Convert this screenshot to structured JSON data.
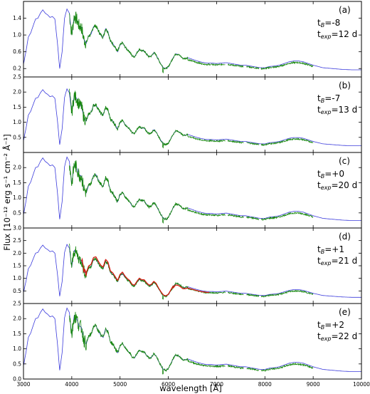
{
  "chart_data": {
    "type": "line",
    "xlabel": "wavelength [Å]",
    "ylabel": "Flux [10⁻¹² erg s⁻¹ cm⁻² Å⁻¹]",
    "xlim": [
      3000,
      10000
    ],
    "x_ticks": [
      "3000",
      "4000",
      "5000",
      "6000",
      "7000",
      "8000",
      "9000",
      "10000"
    ],
    "colors": {
      "model": "#3b3bdc",
      "observed": "#17870f",
      "comparison": "#d41a10"
    },
    "series_roles": [
      "model",
      "observed",
      "comparison"
    ],
    "panels": [
      {
        "label": "(a)",
        "line1": "t",
        "sub1": "B",
        "val1": "=-8",
        "line2": "t",
        "sub2": "exp",
        "val2": "=12 d",
        "ylim": [
          0.0,
          1.8
        ],
        "y_ticks": [
          0.2,
          0.6,
          1.0,
          1.4
        ],
        "model_scale": 1.0,
        "obs_range": [
          3950,
          9000
        ],
        "red": false
      },
      {
        "label": "(b)",
        "line1": "t",
        "sub1": "B",
        "val1": "=-7",
        "line2": "t",
        "sub2": "exp",
        "val2": "=13 d",
        "ylim": [
          0.0,
          2.5
        ],
        "y_ticks": [
          0.5,
          1.0,
          1.5,
          2.0,
          2.5
        ],
        "model_scale": 1.3,
        "obs_range": [
          3950,
          9000
        ],
        "red": false
      },
      {
        "label": "(c)",
        "line1": "t",
        "sub1": "B",
        "val1": "=+0",
        "line2": "t",
        "sub2": "exp",
        "val2": "=20 d",
        "ylim": [
          0.0,
          2.5
        ],
        "y_ticks": [
          0.5,
          1.0,
          1.5,
          2.0
        ],
        "model_scale": 1.45,
        "obs_range": [
          3950,
          9000
        ],
        "red": false
      },
      {
        "label": "(d)",
        "line1": "t",
        "sub1": "B",
        "val1": "=+1",
        "line2": "t",
        "sub2": "exp",
        "val2": "=21 d",
        "ylim": [
          0.0,
          3.0
        ],
        "y_ticks": [
          0.5,
          1.0,
          1.5,
          2.0,
          2.5,
          3.0
        ],
        "model_scale": 1.45,
        "obs_range": [
          3950,
          9000
        ],
        "red": true
      },
      {
        "label": "(e)",
        "line1": "t",
        "sub1": "B",
        "val1": "=+2",
        "line2": "t",
        "sub2": "exp",
        "val2": "=22 d",
        "ylim": [
          0.0,
          2.5
        ],
        "y_ticks": [
          0.0,
          0.5,
          1.0,
          1.5,
          2.0,
          2.5
        ],
        "model_scale": 1.45,
        "obs_range": [
          3950,
          9000
        ],
        "red": false
      }
    ],
    "model_template": {
      "x": [
        3000,
        3050,
        3100,
        3150,
        3200,
        3250,
        3300,
        3350,
        3400,
        3450,
        3500,
        3550,
        3600,
        3650,
        3700,
        3750,
        3800,
        3850,
        3900,
        3950,
        4000,
        4050,
        4100,
        4150,
        4200,
        4250,
        4300,
        4350,
        4400,
        4450,
        4500,
        4550,
        4600,
        4650,
        4700,
        4750,
        4800,
        4850,
        4900,
        4950,
        5000,
        5050,
        5100,
        5150,
        5200,
        5250,
        5300,
        5350,
        5400,
        5450,
        5500,
        5550,
        5600,
        5650,
        5700,
        5750,
        5800,
        5850,
        5900,
        5950,
        6000,
        6050,
        6100,
        6150,
        6200,
        6250,
        6300,
        6350,
        6400,
        6500,
        6600,
        6700,
        6800,
        6900,
        7000,
        7100,
        7200,
        7300,
        7400,
        7500,
        7600,
        7700,
        7800,
        7900,
        8000,
        8100,
        8200,
        8300,
        8400,
        8500,
        8600,
        8700,
        8800,
        8900,
        9000,
        9200,
        9400,
        9600,
        9800,
        10000
      ],
      "y": [
        0.3,
        0.6,
        0.95,
        1.05,
        1.22,
        1.38,
        1.4,
        1.52,
        1.6,
        1.52,
        1.48,
        1.42,
        1.44,
        1.38,
        0.85,
        0.2,
        0.6,
        1.4,
        1.62,
        1.52,
        1.0,
        1.45,
        1.38,
        1.22,
        1.18,
        0.9,
        0.8,
        0.98,
        1.02,
        1.2,
        1.22,
        1.1,
        1.0,
        0.95,
        1.15,
        1.08,
        0.85,
        0.8,
        0.7,
        0.6,
        0.76,
        0.82,
        0.72,
        0.65,
        0.6,
        0.5,
        0.48,
        0.58,
        0.66,
        0.62,
        0.62,
        0.54,
        0.48,
        0.5,
        0.58,
        0.52,
        0.4,
        0.3,
        0.22,
        0.2,
        0.24,
        0.35,
        0.46,
        0.55,
        0.54,
        0.5,
        0.44,
        0.44,
        0.46,
        0.42,
        0.38,
        0.35,
        0.33,
        0.33,
        0.32,
        0.33,
        0.34,
        0.32,
        0.3,
        0.28,
        0.28,
        0.26,
        0.24,
        0.22,
        0.22,
        0.25,
        0.26,
        0.28,
        0.32,
        0.36,
        0.38,
        0.38,
        0.36,
        0.32,
        0.28,
        0.22,
        0.2,
        0.18,
        0.17,
        0.17
      ]
    }
  }
}
